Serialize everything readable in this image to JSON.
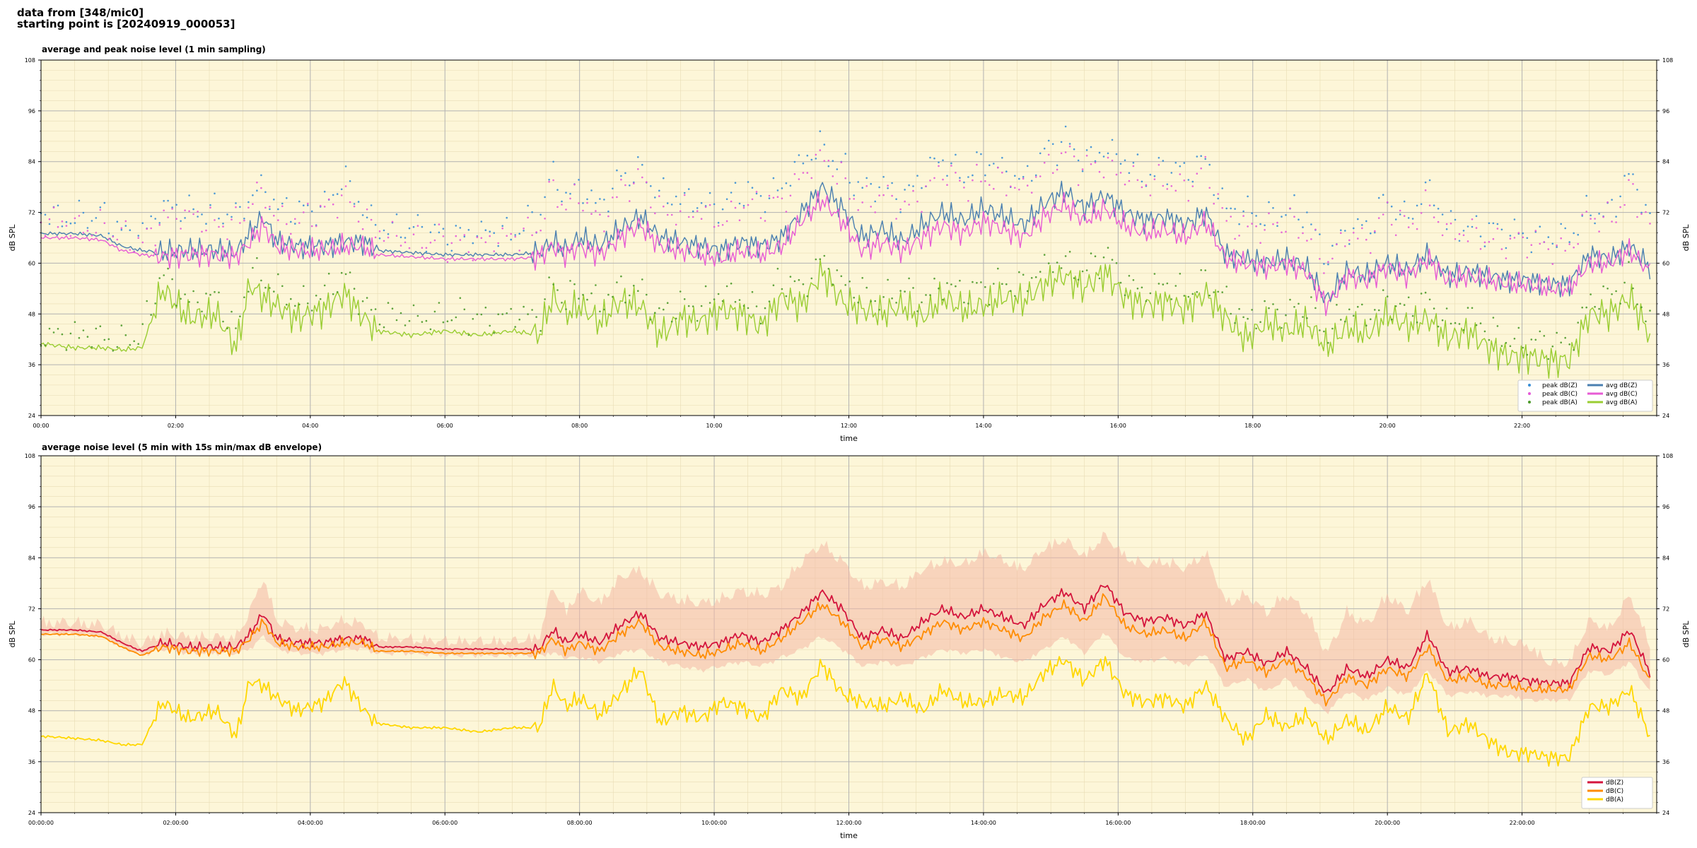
{
  "header": {
    "line1": "data from [348/mic0]",
    "line2": "starting point is [20240919_000053]"
  },
  "colors": {
    "plot_bg": "#fdf6d8",
    "peak_z": "#3a8fd6",
    "peak_c": "#e45ad8",
    "peak_a": "#4c9a2a",
    "avg_z": "#4a7fb0",
    "avg_c": "#e75bd4",
    "avg_a": "#9acd32",
    "db_z": "#d4143c",
    "db_c": "#ff8c00",
    "db_a": "#ffd700",
    "envelope": "#f4b8a6"
  },
  "chart_data": [
    {
      "type": "line",
      "title": "average and peak noise level (1 min sampling)",
      "xlabel": "time",
      "ylabel": "dB SPL",
      "ylim": [
        24,
        108
      ],
      "xlim_hours": [
        0,
        24
      ],
      "yticks": [
        "24",
        "36",
        "48",
        "60",
        "72",
        "84",
        "96",
        "108"
      ],
      "xticks": [
        "00:00",
        "02:00",
        "04:00",
        "06:00",
        "08:00",
        "10:00",
        "12:00",
        "14:00",
        "16:00",
        "18:00",
        "20:00",
        "22:00"
      ],
      "grid": true,
      "legend_position": "bottom-right",
      "legend": [
        {
          "label": "peak dB(Z)",
          "kind": "dot",
          "color": "peak_z"
        },
        {
          "label": "peak dB(C)",
          "kind": "dot",
          "color": "peak_c"
        },
        {
          "label": "peak dB(A)",
          "kind": "dot",
          "color": "peak_a"
        },
        {
          "label": "avg dB(Z)",
          "kind": "line",
          "color": "avg_z"
        },
        {
          "label": "avg dB(C)",
          "kind": "line",
          "color": "avg_c"
        },
        {
          "label": "avg dB(A)",
          "kind": "line",
          "color": "avg_a"
        }
      ],
      "x": [
        0,
        0.5,
        0.9,
        1.2,
        1.5,
        1.8,
        2.2,
        2.6,
        2.9,
        3.1,
        3.3,
        3.5,
        3.8,
        4.2,
        4.5,
        4.8,
        5.0,
        5.5,
        6.0,
        6.5,
        7.0,
        7.4,
        7.6,
        7.8,
        8.0,
        8.3,
        8.6,
        8.9,
        9.2,
        9.5,
        9.8,
        10.1,
        10.4,
        10.7,
        11.0,
        11.3,
        11.6,
        11.9,
        12.2,
        12.5,
        12.8,
        13.1,
        13.4,
        13.7,
        14.0,
        14.3,
        14.6,
        14.9,
        15.2,
        15.5,
        15.8,
        16.1,
        16.4,
        16.7,
        17.0,
        17.3,
        17.6,
        17.9,
        18.2,
        18.5,
        18.8,
        19.1,
        19.4,
        19.7,
        20.0,
        20.3,
        20.6,
        20.9,
        21.2,
        21.5,
        21.8,
        22.1,
        22.4,
        22.7,
        23.0,
        23.3,
        23.6,
        23.9
      ],
      "series": [
        {
          "name": "avg dB(Z)",
          "values": [
            67,
            67,
            66.5,
            64,
            63,
            62.5,
            63,
            63,
            62.5,
            67,
            71,
            65,
            64,
            64,
            65,
            65,
            63,
            62.5,
            62,
            62,
            62,
            62.5,
            65,
            63,
            66,
            64,
            68,
            71,
            66,
            65,
            64,
            63,
            65,
            64,
            66,
            72,
            78,
            73,
            66,
            68,
            65,
            69,
            72,
            70,
            73,
            71,
            69,
            74,
            77,
            73,
            76,
            72,
            70,
            71,
            69,
            72,
            62,
            61,
            60,
            61,
            59,
            51,
            58,
            57,
            60,
            58,
            62,
            57,
            58,
            57,
            56,
            56,
            55,
            55,
            62,
            61,
            64,
            59
          ]
        },
        {
          "name": "avg dB(C)",
          "values": [
            66,
            66,
            65.5,
            63,
            62,
            61.5,
            62,
            62,
            61.5,
            65,
            69,
            64,
            63,
            63,
            64,
            64,
            62,
            61.5,
            61,
            61,
            61,
            61.5,
            64,
            62,
            64,
            62,
            66,
            69,
            64,
            63,
            62,
            61,
            63,
            62,
            64,
            70,
            75,
            70,
            63,
            65,
            63,
            66,
            69,
            67,
            70,
            68,
            66,
            71,
            74,
            70,
            73,
            69,
            67,
            68,
            66,
            70,
            61,
            60,
            59,
            60,
            58,
            50,
            57,
            56,
            59,
            57,
            61,
            56,
            57,
            56,
            55,
            55,
            54,
            54,
            60,
            60,
            63,
            58
          ]
        },
        {
          "name": "avg dB(A)",
          "values": [
            41,
            40,
            40,
            39.5,
            40,
            54,
            47,
            48,
            40,
            55,
            52,
            50,
            47,
            49,
            53,
            47,
            44,
            43,
            44,
            43,
            44,
            43,
            52,
            48,
            50,
            46,
            51,
            50,
            43,
            47,
            46,
            49,
            48,
            45,
            52,
            50,
            58,
            51,
            49,
            48,
            50,
            47,
            52,
            49,
            50,
            52,
            51,
            55,
            57,
            54,
            58,
            52,
            50,
            51,
            49,
            53,
            47,
            42,
            46,
            44,
            46,
            40,
            45,
            43,
            48,
            45,
            47,
            42,
            44,
            40,
            38,
            38,
            37,
            37,
            48,
            48,
            52,
            43
          ]
        },
        {
          "name": "peak dB(Z)",
          "values": [
            71,
            70,
            70,
            67,
            66,
            72,
            72,
            71,
            70,
            75,
            78,
            72,
            71,
            73,
            79,
            71,
            68,
            67,
            66,
            66,
            67,
            70,
            80,
            75,
            78,
            72,
            79,
            82,
            75,
            74,
            74,
            72,
            76,
            75,
            77,
            83,
            87,
            82,
            76,
            78,
            75,
            79,
            84,
            80,
            83,
            81,
            79,
            85,
            88,
            84,
            86,
            83,
            80,
            82,
            80,
            84,
            72,
            71,
            70,
            72,
            70,
            60,
            68,
            67,
            74,
            70,
            77,
            68,
            68,
            67,
            66,
            66,
            65,
            65,
            72,
            71,
            80,
            70
          ]
        },
        {
          "name": "peak dB(C)",
          "values": [
            69,
            68,
            68,
            65,
            64,
            70,
            70,
            69,
            68,
            73,
            76,
            70,
            69,
            71,
            76,
            69,
            66,
            65,
            64,
            64,
            65,
            68,
            77,
            72,
            75,
            69,
            76,
            79,
            72,
            71,
            71,
            69,
            73,
            72,
            74,
            80,
            84,
            79,
            73,
            75,
            72,
            76,
            81,
            77,
            80,
            78,
            76,
            82,
            85,
            81,
            83,
            80,
            77,
            79,
            77,
            81,
            69,
            68,
            67,
            69,
            67,
            58,
            66,
            65,
            71,
            67,
            74,
            66,
            66,
            65,
            64,
            64,
            63,
            63,
            70,
            69,
            77,
            68
          ]
        },
        {
          "name": "peak dB(A)",
          "values": [
            43,
            42,
            42,
            41,
            42,
            57,
            50,
            51,
            43,
            58,
            55,
            53,
            50,
            52,
            56,
            50,
            47,
            46,
            47,
            46,
            47,
            46,
            55,
            51,
            53,
            49,
            54,
            53,
            46,
            50,
            49,
            52,
            51,
            48,
            55,
            53,
            61,
            54,
            52,
            51,
            53,
            50,
            55,
            52,
            53,
            55,
            54,
            58,
            60,
            57,
            61,
            55,
            53,
            54,
            52,
            56,
            50,
            45,
            49,
            47,
            49,
            43,
            48,
            46,
            51,
            48,
            50,
            45,
            47,
            43,
            41,
            41,
            40,
            40,
            51,
            51,
            55,
            46
          ]
        }
      ]
    },
    {
      "type": "line",
      "title": "average noise level (5 min with 15s min/max dB envelope)",
      "xlabel": "time",
      "ylabel": "dB SPL",
      "ylim": [
        24,
        108
      ],
      "xlim_hours": [
        0,
        24
      ],
      "yticks": [
        "24",
        "36",
        "48",
        "60",
        "72",
        "84",
        "96",
        "108"
      ],
      "xticks": [
        "00:00:00",
        "02:00:00",
        "04:00:00",
        "06:00:00",
        "08:00:00",
        "10:00:00",
        "12:00:00",
        "14:00:00",
        "16:00:00",
        "18:00:00",
        "20:00:00",
        "22:00:00"
      ],
      "grid": true,
      "legend_position": "bottom-right",
      "legend": [
        {
          "label": "dB(Z)",
          "kind": "line",
          "color": "db_z"
        },
        {
          "label": "dB(C)",
          "kind": "line",
          "color": "db_c"
        },
        {
          "label": "dB(A)",
          "kind": "line",
          "color": "db_a"
        }
      ],
      "x": [
        0,
        0.5,
        0.9,
        1.2,
        1.5,
        1.8,
        2.2,
        2.6,
        2.9,
        3.1,
        3.3,
        3.5,
        3.8,
        4.2,
        4.5,
        4.8,
        5.0,
        5.5,
        6.0,
        6.5,
        7.0,
        7.4,
        7.6,
        7.8,
        8.0,
        8.3,
        8.6,
        8.9,
        9.2,
        9.5,
        9.8,
        10.1,
        10.4,
        10.7,
        11.0,
        11.3,
        11.6,
        11.9,
        12.2,
        12.5,
        12.8,
        13.1,
        13.4,
        13.7,
        14.0,
        14.3,
        14.6,
        14.9,
        15.2,
        15.5,
        15.8,
        16.1,
        16.4,
        16.7,
        17.0,
        17.3,
        17.6,
        17.9,
        18.2,
        18.5,
        18.8,
        19.1,
        19.4,
        19.7,
        20.0,
        20.3,
        20.6,
        20.9,
        21.2,
        21.5,
        21.8,
        22.1,
        22.4,
        22.7,
        23.0,
        23.3,
        23.6,
        23.9
      ],
      "series": [
        {
          "name": "dB(Z)",
          "values": [
            67,
            67,
            66.5,
            64,
            62,
            64,
            63,
            63,
            63,
            66,
            71,
            65,
            64,
            64,
            65,
            65,
            63,
            63,
            62.5,
            62.5,
            62.5,
            62.5,
            67,
            64,
            66,
            64,
            68,
            71,
            65,
            64,
            63,
            64,
            66,
            64,
            67,
            71,
            76,
            72,
            65,
            67,
            65,
            69,
            72,
            70,
            72,
            70,
            68,
            73,
            76,
            72,
            78,
            71,
            69,
            70,
            68,
            71,
            60,
            62,
            59,
            62,
            58,
            52,
            58,
            56,
            60,
            58,
            66,
            57,
            58,
            56,
            56,
            55,
            54.5,
            54.5,
            63,
            62,
            67,
            57
          ]
        },
        {
          "name": "dB(C)",
          "values": [
            66,
            66,
            65.5,
            63,
            61,
            63,
            62,
            62,
            62,
            65,
            69,
            64,
            63,
            63,
            64,
            64,
            62,
            62,
            61.5,
            61.5,
            61.5,
            61.5,
            65,
            62,
            64,
            62,
            66,
            69,
            63,
            62,
            61,
            62,
            64,
            62,
            65,
            69,
            73,
            69,
            63,
            65,
            63,
            66,
            69,
            67,
            69,
            67,
            65,
            70,
            73,
            69,
            75,
            68,
            66,
            67,
            65,
            69,
            58,
            60,
            57,
            60,
            56,
            50,
            56,
            54,
            58,
            56,
            63,
            55,
            56,
            54,
            54,
            53,
            53,
            53,
            61,
            60,
            64,
            55
          ]
        },
        {
          "name": "dB(A)",
          "values": [
            42,
            41.5,
            41,
            40,
            40,
            50,
            46,
            48,
            42,
            55,
            54,
            51,
            48,
            50,
            55,
            48,
            45,
            44,
            44,
            43,
            44,
            44,
            54,
            49,
            51,
            47,
            52,
            58,
            45,
            48,
            46,
            50,
            49,
            46,
            53,
            51,
            59,
            52,
            50,
            49,
            51,
            48,
            53,
            50,
            50,
            52,
            51,
            57,
            60,
            55,
            60,
            52,
            50,
            51,
            49,
            54,
            46,
            41,
            47,
            44,
            47,
            41,
            46,
            43,
            49,
            46,
            57,
            43,
            45,
            41,
            38,
            38,
            37,
            37,
            49,
            49,
            53,
            42
          ]
        },
        {
          "name": "envelope max",
          "values": [
            67.5,
            67.5,
            67,
            64.5,
            62.5,
            65,
            64,
            64,
            64,
            70,
            78,
            68,
            66,
            66,
            68,
            67,
            64,
            63.5,
            63,
            63,
            63,
            64,
            76,
            70,
            75,
            72,
            78,
            80,
            74,
            73,
            72,
            73,
            75,
            74,
            76,
            82,
            86,
            82,
            76,
            77,
            76,
            80,
            82,
            81,
            84,
            82,
            80,
            85,
            87,
            83,
            88,
            83,
            81,
            82,
            80,
            84,
            72,
            74,
            70,
            74,
            70,
            60,
            70,
            67,
            74,
            70,
            78,
            66,
            68,
            64,
            63,
            62,
            58,
            58,
            68,
            66,
            74,
            62
          ]
        },
        {
          "name": "envelope min",
          "values": [
            66.5,
            66.5,
            66,
            63.5,
            61.5,
            63,
            62,
            62,
            62,
            63,
            66,
            63,
            62,
            62,
            63,
            63,
            62,
            62,
            61.5,
            61.5,
            61.5,
            61.5,
            62,
            61,
            61,
            60,
            62,
            63,
            60,
            59,
            58,
            59,
            60,
            59,
            61,
            63,
            66,
            63,
            59,
            60,
            59,
            61,
            63,
            62,
            63,
            61,
            60,
            63,
            66,
            62,
            67,
            61,
            60,
            61,
            59,
            62,
            54,
            56,
            53,
            56,
            52,
            48,
            53,
            51,
            54,
            52,
            58,
            52,
            53,
            52,
            52,
            51,
            51,
            51,
            58,
            57,
            60,
            53
          ]
        }
      ]
    }
  ]
}
